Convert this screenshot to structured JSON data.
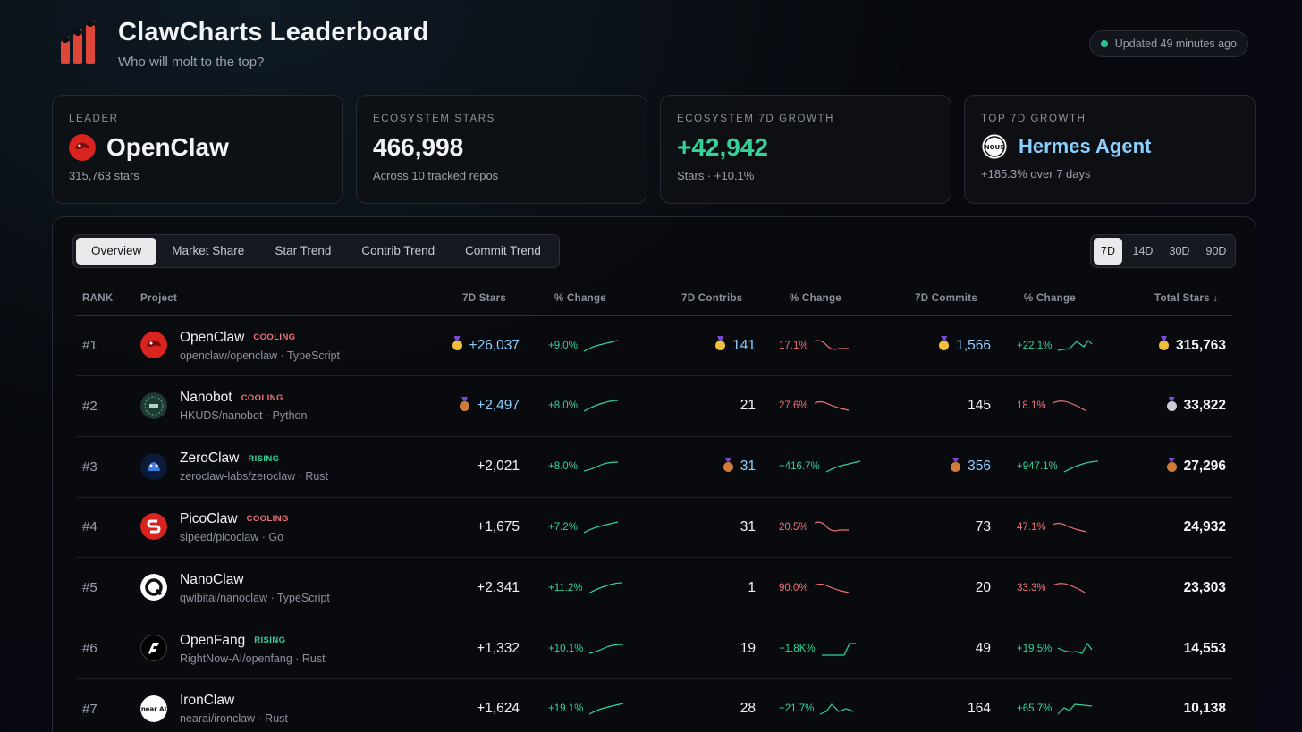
{
  "header": {
    "title": "ClawCharts Leaderboard",
    "subtitle": "Who will molt to the top?",
    "updated": "Updated 49 minutes ago"
  },
  "cards": {
    "leader": {
      "label": "LEADER",
      "value": "OpenClaw",
      "sub": "315,763 stars"
    },
    "stars": {
      "label": "ECOSYSTEM STARS",
      "value": "466,998",
      "sub": "Across 10 tracked repos"
    },
    "growth": {
      "label": "ECOSYSTEM 7D GROWTH",
      "value": "+42,942",
      "sub": "Stars · +10.1%"
    },
    "top": {
      "label": "TOP 7D GROWTH",
      "value": "Hermes Agent",
      "sub": "+185.3% over 7 days"
    }
  },
  "tabs": [
    "Overview",
    "Market Share",
    "Star Trend",
    "Contrib Trend",
    "Commit Trend"
  ],
  "ranges": [
    "7D",
    "14D",
    "30D",
    "90D"
  ],
  "columns": {
    "rank": "RANK",
    "project": "Project",
    "stars7d": "7D Stars",
    "change1": "% Change",
    "contribs": "7D Contribs",
    "change2": "% Change",
    "commits": "7D Commits",
    "change3": "% Change",
    "total": "Total Stars ↓"
  },
  "colors": {
    "accent_green": "#34d399",
    "accent_red": "#f07178",
    "accent_blue": "#8ad0ff"
  },
  "rows": [
    {
      "rank": "#1",
      "name": "OpenClaw",
      "badge": "COOLING",
      "repo": "openclaw/openclaw · TypeScript",
      "icon": "openclaw-logo-icon",
      "stars": "+26,037",
      "stars_medal": "gold",
      "sc": "+9.0%",
      "sc_dir": "up",
      "contribs": "141",
      "contribs_medal": "gold",
      "cc": "17.1%",
      "cc_dir": "down",
      "commits": "1,566",
      "commits_medal": "gold",
      "mc": "+22.1%",
      "mc_dir": "up",
      "total": "315,763",
      "total_medal": "gold"
    },
    {
      "rank": "#2",
      "name": "Nanobot",
      "badge": "COOLING",
      "repo": "HKUDS/nanobot · Python",
      "icon": "nanobot-logo-icon",
      "stars": "+2,497",
      "stars_medal": "bronze",
      "sc": "+8.0%",
      "sc_dir": "up",
      "contribs": "21",
      "contribs_medal": "",
      "cc": "27.6%",
      "cc_dir": "down",
      "commits": "145",
      "commits_medal": "",
      "mc": "18.1%",
      "mc_dir": "down",
      "total": "33,822",
      "total_medal": "silver"
    },
    {
      "rank": "#3",
      "name": "ZeroClaw",
      "badge": "RISING",
      "repo": "zeroclaw-labs/zeroclaw · Rust",
      "icon": "zeroclaw-logo-icon",
      "stars": "+2,021",
      "stars_medal": "",
      "sc": "+8.0%",
      "sc_dir": "up",
      "contribs": "31",
      "contribs_medal": "bronze",
      "cc": "+416.7%",
      "cc_dir": "up",
      "commits": "356",
      "commits_medal": "bronze",
      "mc": "+947.1%",
      "mc_dir": "up",
      "total": "27,296",
      "total_medal": "bronze"
    },
    {
      "rank": "#4",
      "name": "PicoClaw",
      "badge": "COOLING",
      "repo": "sipeed/picoclaw · Go",
      "icon": "picoclaw-logo-icon",
      "stars": "+1,675",
      "stars_medal": "",
      "sc": "+7.2%",
      "sc_dir": "up",
      "contribs": "31",
      "contribs_medal": "",
      "cc": "20.5%",
      "cc_dir": "down",
      "commits": "73",
      "commits_medal": "",
      "mc": "47.1%",
      "mc_dir": "down",
      "total": "24,932",
      "total_medal": ""
    },
    {
      "rank": "#5",
      "name": "NanoClaw",
      "badge": "",
      "repo": "qwibitai/nanoclaw · TypeScript",
      "icon": "nanoclaw-logo-icon",
      "stars": "+2,341",
      "stars_medal": "",
      "sc": "+11.2%",
      "sc_dir": "up",
      "contribs": "1",
      "contribs_medal": "",
      "cc": "90.0%",
      "cc_dir": "down",
      "commits": "20",
      "commits_medal": "",
      "mc": "33.3%",
      "mc_dir": "down",
      "total": "23,303",
      "total_medal": ""
    },
    {
      "rank": "#6",
      "name": "OpenFang",
      "badge": "RISING",
      "repo": "RightNow-AI/openfang · Rust",
      "icon": "openfang-logo-icon",
      "stars": "+1,332",
      "stars_medal": "",
      "sc": "+10.1%",
      "sc_dir": "up",
      "contribs": "19",
      "contribs_medal": "",
      "cc": "+1.8K%",
      "cc_dir": "up",
      "commits": "49",
      "commits_medal": "",
      "mc": "+19.5%",
      "mc_dir": "up",
      "total": "14,553",
      "total_medal": ""
    },
    {
      "rank": "#7",
      "name": "IronClaw",
      "badge": "",
      "repo": "nearai/ironclaw · Rust",
      "icon": "ironclaw-logo-icon",
      "stars": "+1,624",
      "stars_medal": "",
      "sc": "+19.1%",
      "sc_dir": "up",
      "contribs": "28",
      "contribs_medal": "",
      "cc": "+21.7%",
      "cc_dir": "up",
      "commits": "164",
      "commits_medal": "",
      "mc": "+65.7%",
      "mc_dir": "up",
      "total": "10,138",
      "total_medal": ""
    }
  ],
  "logo_texts": {
    "ironclaw": "near AI",
    "nous": "NOUS"
  }
}
